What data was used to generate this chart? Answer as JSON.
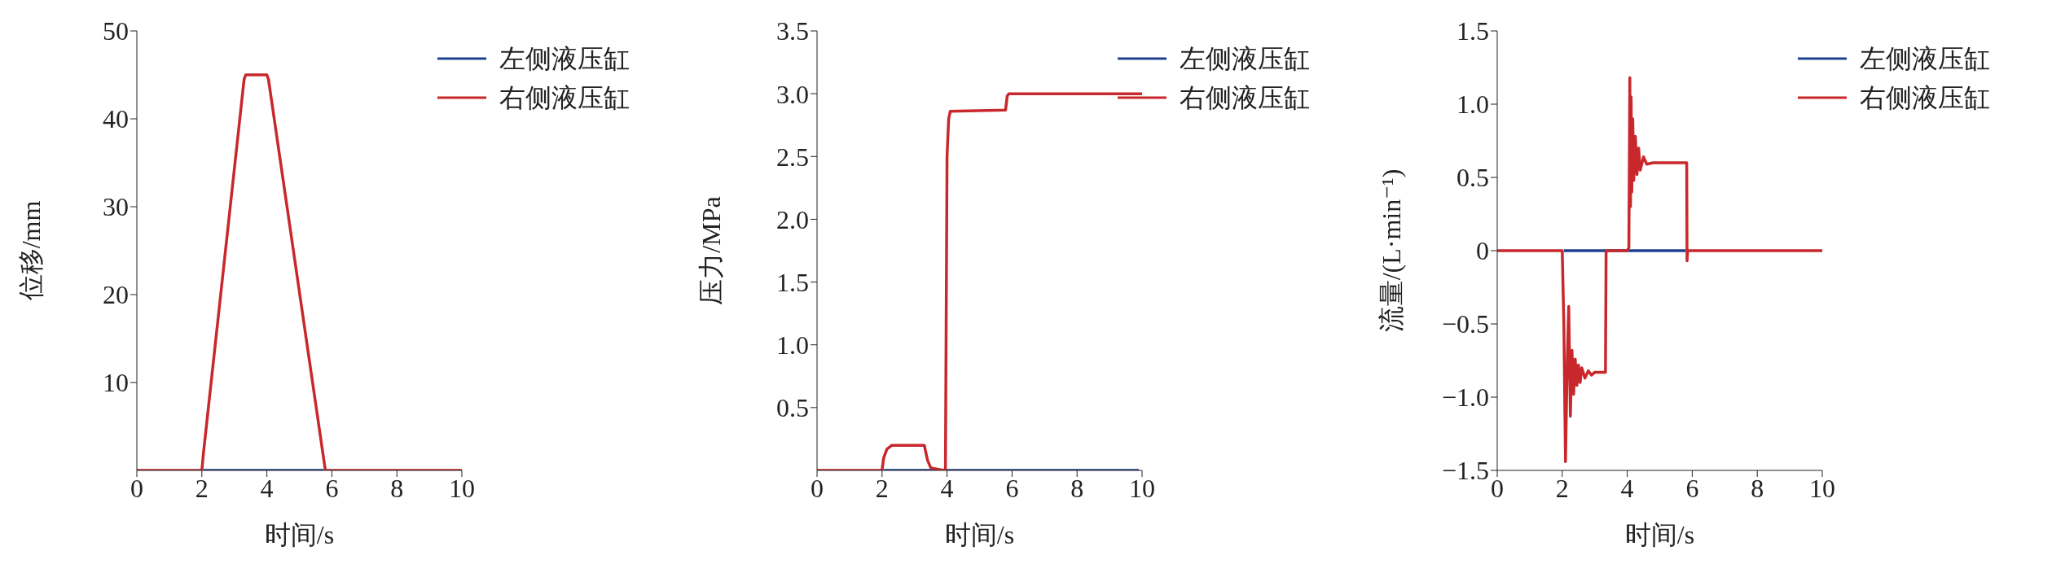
{
  "chart_data": [
    {
      "type": "line",
      "xlabel": "时间/s",
      "ylabel": "位移/mm",
      "xlim": [
        0,
        10
      ],
      "xticks": [
        0,
        2,
        4,
        6,
        8,
        10
      ],
      "ylim": [
        0,
        50
      ],
      "yticks": [
        10,
        20,
        30,
        40,
        50
      ],
      "legend": "top right",
      "grid": false,
      "marker": "none",
      "line_style": "solid",
      "series": [
        {
          "name": "左侧液压缸",
          "color": "#1f3f8f",
          "x": [
            2.05,
            5.75
          ],
          "values": [
            0,
            0
          ]
        },
        {
          "name": "右侧液压缸",
          "color": "#c8282c",
          "x": [
            0,
            2,
            2.05,
            3.3,
            3.35,
            4,
            4.05,
            5.8,
            10
          ],
          "values": [
            0,
            0,
            2,
            44.5,
            45,
            45,
            44.5,
            0,
            0
          ]
        }
      ]
    },
    {
      "type": "line",
      "xlabel": "时间/s",
      "ylabel": "压力/MPa",
      "xlim": [
        0,
        10
      ],
      "xticks": [
        0,
        2,
        4,
        6,
        8,
        10
      ],
      "ylim": [
        0,
        3.5
      ],
      "yticks": [
        0.5,
        {
          "value": 1,
          "label": "1.0"
        },
        1.5,
        {
          "value": 2,
          "label": "2.0"
        },
        2.5,
        {
          "value": 3,
          "label": "3.0"
        },
        3.5
      ],
      "legend": "top right",
      "grid": false,
      "marker": "none",
      "line_style": "solid",
      "series": [
        {
          "name": "左侧液压缸",
          "color": "#1f3f8f",
          "x": [
            2.05,
            9.9
          ],
          "values": [
            0,
            0
          ]
        },
        {
          "name": "右侧液压缸",
          "color": "#c8282c",
          "x": [
            0,
            2,
            2.05,
            2.15,
            2.3,
            3.3,
            3.4,
            3.5,
            3.9,
            3.95,
            4.0,
            4.05,
            4.1,
            5.8,
            5.85,
            5.9,
            10
          ],
          "values": [
            0,
            0,
            0.1,
            0.17,
            0.2,
            0.2,
            0.08,
            0.02,
            0,
            0,
            2.5,
            2.8,
            2.86,
            2.87,
            2.98,
            3.0,
            3.0
          ]
        }
      ]
    },
    {
      "type": "line",
      "xlabel": "时间/s",
      "ylabel": "流量/(L·min⁻¹)",
      "xlim": [
        0,
        10
      ],
      "xticks": [
        0,
        2,
        4,
        6,
        8,
        10
      ],
      "ylim": [
        -1.5,
        1.5
      ],
      "yticks": [
        {
          "value": -1.5,
          "label": "−1.5"
        },
        {
          "value": -1,
          "label": "−1.0"
        },
        {
          "value": -0.5,
          "label": "−0.5"
        },
        0,
        0.5,
        {
          "value": 1,
          "label": "1.0"
        },
        1.5
      ],
      "legend": "top right",
      "grid": false,
      "marker": "none",
      "line_style": "solid",
      "series": [
        {
          "name": "左侧液压缸",
          "color": "#1f3f8f",
          "x": [
            2.05,
            5.8
          ],
          "values": [
            0,
            0
          ]
        },
        {
          "name": "右侧液压缸",
          "color": "#c8282c",
          "x": [
            0,
            2,
            2.05,
            2.1,
            2.15,
            2.2,
            2.25,
            2.3,
            2.35,
            2.4,
            2.45,
            2.5,
            2.55,
            2.6,
            2.7,
            2.8,
            2.9,
            3.0,
            3.33,
            3.35,
            4.0,
            4.05,
            4.08,
            4.1,
            4.12,
            4.14,
            4.17,
            4.2,
            4.25,
            4.3,
            4.35,
            4.4,
            4.5,
            4.6,
            4.8,
            5.83,
            5.84,
            5.86,
            10
          ],
          "values": [
            0,
            0,
            -0.5,
            -1.44,
            -0.8,
            -0.38,
            -1.13,
            -0.68,
            -0.98,
            -0.74,
            -0.92,
            -0.78,
            -0.9,
            -0.8,
            -0.87,
            -0.82,
            -0.85,
            -0.83,
            -0.83,
            0,
            0,
            0.02,
            1.18,
            0.3,
            1.05,
            0.4,
            0.9,
            0.48,
            0.78,
            0.52,
            0.7,
            0.55,
            0.64,
            0.59,
            0.6,
            0.6,
            -0.07,
            0,
            0
          ]
        }
      ]
    }
  ]
}
